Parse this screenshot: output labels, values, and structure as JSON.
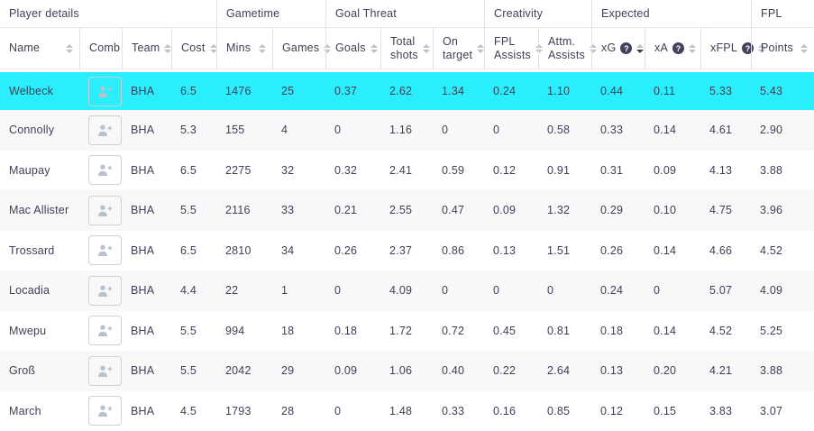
{
  "table": {
    "groups": [
      {
        "label": "Player details",
        "span": 4
      },
      {
        "label": "Gametime",
        "span": 2
      },
      {
        "label": "Goal Threat",
        "span": 3
      },
      {
        "label": "Creativity",
        "span": 2
      },
      {
        "label": "Expected",
        "span": 3
      },
      {
        "label": "FPL",
        "span": 1
      }
    ],
    "columns": [
      {
        "label": "Name",
        "field": "name",
        "sortable": true
      },
      {
        "label": "Comb",
        "field": "comb",
        "sortable": false
      },
      {
        "label": "Team",
        "field": "team",
        "sortable": true
      },
      {
        "label": "Cost",
        "field": "cost",
        "sortable": true
      },
      {
        "label": "Mins",
        "field": "mins",
        "sortable": true
      },
      {
        "label": "Games",
        "field": "games",
        "sortable": true
      },
      {
        "label": "Goals",
        "field": "goals",
        "sortable": true
      },
      {
        "label": "Total shots",
        "field": "total_shots",
        "sortable": true
      },
      {
        "label": "On target",
        "field": "on_target",
        "sortable": true
      },
      {
        "label": "FPL Assists",
        "field": "fpl_assists",
        "sortable": true
      },
      {
        "label": "Attm. Assists",
        "field": "attm_assists",
        "sortable": true
      },
      {
        "label": "xG",
        "field": "xg",
        "sortable": true,
        "help": true,
        "sorted": "desc"
      },
      {
        "label": "xA",
        "field": "xa",
        "sortable": true,
        "help": true
      },
      {
        "label": "xFPL",
        "field": "xfpl",
        "sortable": true,
        "help": true
      },
      {
        "label": "Points",
        "field": "points",
        "sortable": true
      }
    ],
    "help_glyph": "?",
    "comb_icon": "person-add-icon",
    "rows": [
      {
        "name": "Welbeck",
        "team": "BHA",
        "cost": "6.5",
        "mins": "1476",
        "games": "25",
        "goals": "0.37",
        "total_shots": "2.62",
        "on_target": "1.34",
        "fpl_assists": "0.24",
        "attm_assists": "1.10",
        "xg": "0.44",
        "xa": "0.11",
        "xfpl": "5.33",
        "points": "5.43",
        "highlighted": true
      },
      {
        "name": "Connolly",
        "team": "BHA",
        "cost": "5.3",
        "mins": "155",
        "games": "4",
        "goals": "0",
        "total_shots": "1.16",
        "on_target": "0",
        "fpl_assists": "0",
        "attm_assists": "0.58",
        "xg": "0.33",
        "xa": "0.14",
        "xfpl": "4.61",
        "points": "2.90",
        "highlighted": false
      },
      {
        "name": "Maupay",
        "team": "BHA",
        "cost": "6.5",
        "mins": "2275",
        "games": "32",
        "goals": "0.32",
        "total_shots": "2.41",
        "on_target": "0.59",
        "fpl_assists": "0.12",
        "attm_assists": "0.91",
        "xg": "0.31",
        "xa": "0.09",
        "xfpl": "4.13",
        "points": "3.88",
        "highlighted": false
      },
      {
        "name": "Mac Allister",
        "team": "BHA",
        "cost": "5.5",
        "mins": "2116",
        "games": "33",
        "goals": "0.21",
        "total_shots": "2.55",
        "on_target": "0.47",
        "fpl_assists": "0.09",
        "attm_assists": "1.32",
        "xg": "0.29",
        "xa": "0.10",
        "xfpl": "4.75",
        "points": "3.96",
        "highlighted": false
      },
      {
        "name": "Trossard",
        "team": "BHA",
        "cost": "6.5",
        "mins": "2810",
        "games": "34",
        "goals": "0.26",
        "total_shots": "2.37",
        "on_target": "0.86",
        "fpl_assists": "0.13",
        "attm_assists": "1.51",
        "xg": "0.26",
        "xa": "0.14",
        "xfpl": "4.66",
        "points": "4.52",
        "highlighted": false
      },
      {
        "name": "Locadia",
        "team": "BHA",
        "cost": "4.4",
        "mins": "22",
        "games": "1",
        "goals": "0",
        "total_shots": "4.09",
        "on_target": "0",
        "fpl_assists": "0",
        "attm_assists": "0",
        "xg": "0.24",
        "xa": "0",
        "xfpl": "5.07",
        "points": "4.09",
        "highlighted": false
      },
      {
        "name": "Mwepu",
        "team": "BHA",
        "cost": "5.5",
        "mins": "994",
        "games": "18",
        "goals": "0.18",
        "total_shots": "1.72",
        "on_target": "0.72",
        "fpl_assists": "0.45",
        "attm_assists": "0.81",
        "xg": "0.18",
        "xa": "0.14",
        "xfpl": "4.52",
        "points": "5.25",
        "highlighted": false
      },
      {
        "name": "Groß",
        "team": "BHA",
        "cost": "5.5",
        "mins": "2042",
        "games": "29",
        "goals": "0.09",
        "total_shots": "1.06",
        "on_target": "0.40",
        "fpl_assists": "0.22",
        "attm_assists": "2.64",
        "xg": "0.13",
        "xa": "0.20",
        "xfpl": "4.21",
        "points": "3.88",
        "highlighted": false
      },
      {
        "name": "March",
        "team": "BHA",
        "cost": "4.5",
        "mins": "1793",
        "games": "28",
        "goals": "0",
        "total_shots": "1.48",
        "on_target": "0.33",
        "fpl_assists": "0.16",
        "attm_assists": "0.85",
        "xg": "0.12",
        "xa": "0.15",
        "xfpl": "3.83",
        "points": "3.07",
        "highlighted": false
      }
    ],
    "colors": {
      "highlight_row": "#2beefc",
      "stripe_row": "#f8f8f9",
      "text": "#3f3f58",
      "border": "#e2e2e6",
      "sort_inactive": "#b9c1cb",
      "sort_active": "#3a3a55"
    }
  }
}
